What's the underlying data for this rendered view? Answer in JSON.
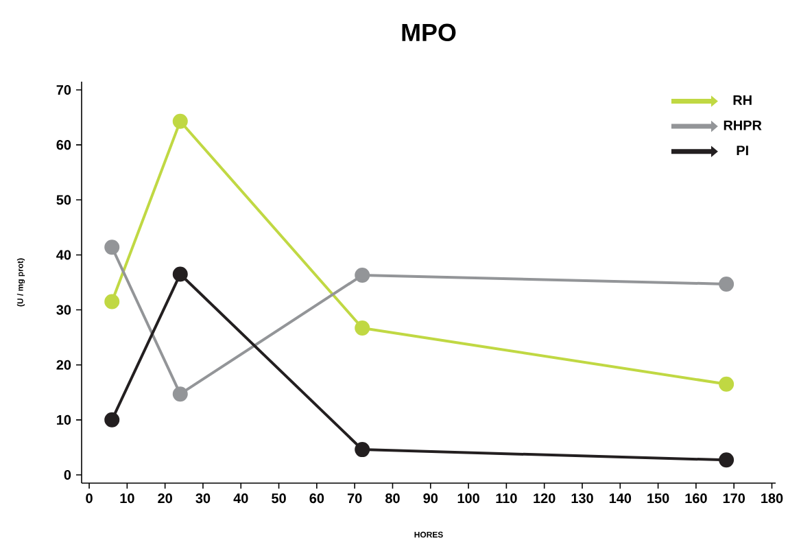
{
  "chart_data": {
    "type": "line",
    "title": "MPO",
    "xlabel": "HORES",
    "ylabel": "(U / mg prot)",
    "x": [
      6,
      24,
      72,
      168
    ],
    "series": [
      {
        "name": "RH",
        "color": "#c0d843",
        "values": [
          31.5,
          64.3,
          26.7,
          16.5
        ]
      },
      {
        "name": "RHPR",
        "color": "#939598",
        "values": [
          41.4,
          14.7,
          36.3,
          34.7
        ]
      },
      {
        "name": "PI",
        "color": "#231f20",
        "values": [
          10.0,
          36.5,
          4.6,
          2.7
        ]
      }
    ],
    "xlim": [
      -2,
      181
    ],
    "ylim": [
      -1.5,
      71.5
    ],
    "xticks": [
      0,
      10,
      20,
      30,
      40,
      50,
      60,
      70,
      80,
      90,
      100,
      110,
      120,
      130,
      140,
      150,
      160,
      170,
      180
    ],
    "yticks": [
      0,
      10,
      20,
      30,
      40,
      50,
      60,
      70
    ],
    "grid": false,
    "legend": "top right",
    "marker": "circle",
    "line_style": "solid"
  }
}
